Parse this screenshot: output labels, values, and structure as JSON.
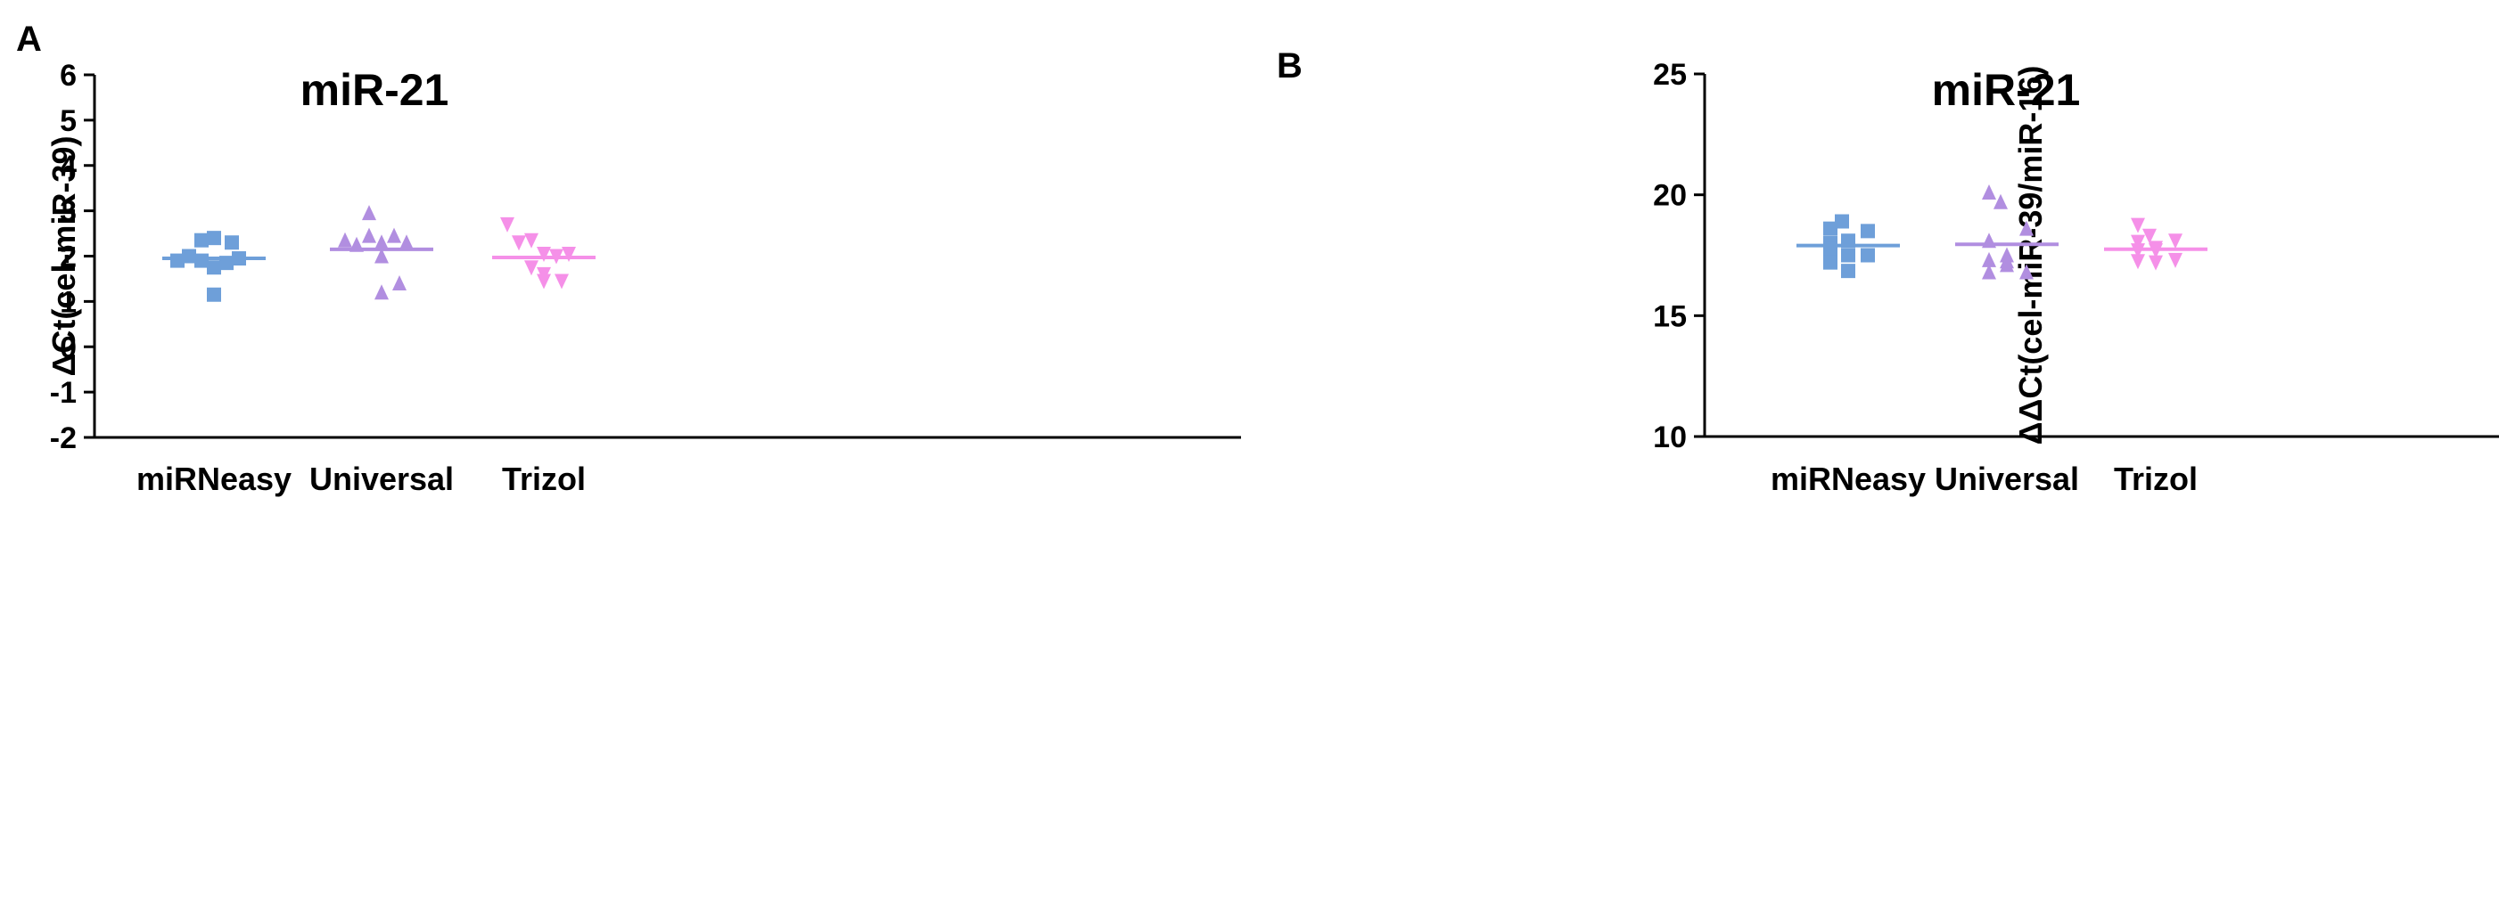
{
  "figure": {
    "panel_letters": [
      "A",
      "B"
    ]
  },
  "chart_data": [
    {
      "panel": "A",
      "type": "scatter",
      "title": "miR-21",
      "xlabel": "",
      "ylabel": "ΔCt(cel-miR-39)",
      "categories": [
        "miRNeasy",
        "Universal",
        "Trizol"
      ],
      "ylim": [
        -2,
        6
      ],
      "yticks": [
        -2,
        -1,
        0,
        1,
        2,
        3,
        4,
        5,
        6
      ],
      "series": [
        {
          "name": "miRNeasy",
          "marker": "square",
          "color": "#6e9fd9",
          "mean": 1.95,
          "values": [
            1.9,
            2.0,
            1.9,
            1.75,
            1.85,
            1.95,
            2.35,
            2.4,
            2.3,
            1.15
          ]
        },
        {
          "name": "Universal",
          "marker": "triangle-up",
          "color": "#b18ee0",
          "mean": 2.15,
          "values": [
            2.35,
            2.25,
            2.45,
            2.3,
            2.45,
            2.3,
            2.95,
            2.0,
            1.4,
            1.2
          ]
        },
        {
          "name": "Trizol",
          "marker": "triangle-down",
          "color": "#f590e8",
          "mean": 1.97,
          "values": [
            2.7,
            2.3,
            2.35,
            2.05,
            2.0,
            2.05,
            1.75,
            1.6,
            1.45,
            1.45
          ]
        }
      ]
    },
    {
      "panel": "B",
      "type": "scatter",
      "title": "miR-21",
      "xlabel": "",
      "ylabel": "ΔΔCt(cel-miR-39/miR-16)",
      "categories": [
        "miRNeasy",
        "Universal",
        "Trizol"
      ],
      "ylim": [
        10,
        25
      ],
      "yticks": [
        10,
        15,
        20,
        25
      ],
      "series": [
        {
          "name": "miRNeasy",
          "marker": "square",
          "color": "#6e9fd9",
          "mean": 17.9,
          "values": [
            18.6,
            18.9,
            18.5,
            18.0,
            18.1,
            17.75,
            17.5,
            17.5,
            17.2,
            16.85
          ]
        },
        {
          "name": "Universal",
          "marker": "triangle-up",
          "color": "#b18ee0",
          "mean": 17.95,
          "values": [
            20.1,
            19.7,
            18.6,
            18.1,
            17.5,
            17.3,
            17.25,
            16.8,
            16.8,
            17.1
          ]
        },
        {
          "name": "Trizol",
          "marker": "triangle-down",
          "color": "#f590e8",
          "mean": 17.75,
          "values": [
            18.75,
            18.3,
            18.1,
            18.05,
            17.8,
            17.7,
            17.7,
            17.3,
            17.25,
            17.2
          ]
        }
      ]
    }
  ]
}
